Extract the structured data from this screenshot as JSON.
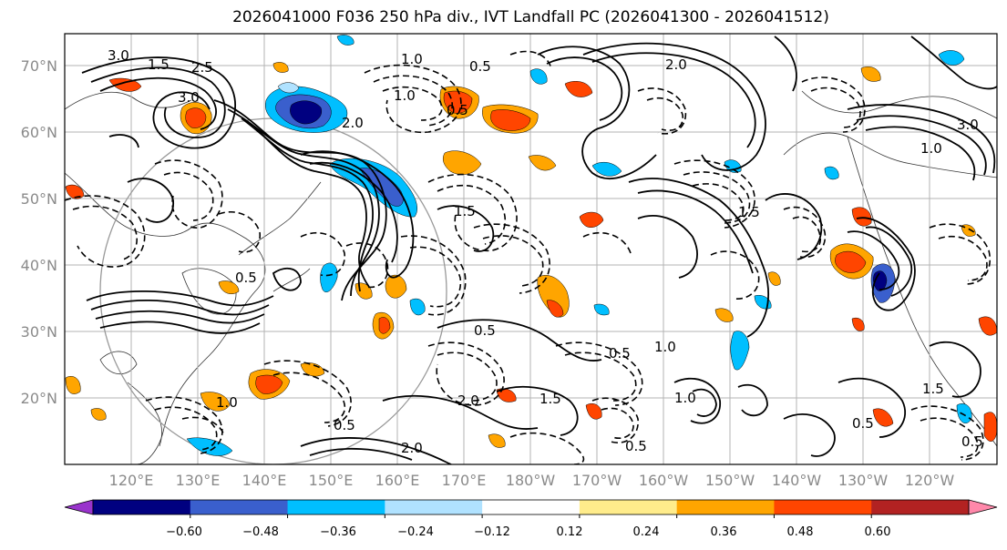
{
  "title": "2026041000 F036 250 hPa div., IVT Landfall PC (2026041300 - 2026041512)",
  "map": {
    "lat_labels": [
      "70°N",
      "60°N",
      "50°N",
      "40°N",
      "30°N",
      "20°N"
    ],
    "lon_labels": [
      "120°E",
      "130°E",
      "140°E",
      "150°E",
      "160°E",
      "170°E",
      "180°W",
      "170°W",
      "160°W",
      "150°W",
      "140°W",
      "130°W",
      "120°W"
    ],
    "contour_labels": [
      "3.0",
      "1.5",
      "2.5",
      "3.0",
      "1.0",
      "0.5",
      "2.0",
      "1.0",
      "0.5",
      "1.5",
      "0.5",
      "2.0",
      "3.0",
      "1.5",
      "1.0",
      "0.5",
      "1.0",
      "0.5",
      "1.5",
      "2.0",
      "1.0",
      "0.5",
      "1.0",
      "0.5",
      "2.0",
      "0.5",
      "1.5",
      "0.5"
    ]
  },
  "colorbar": {
    "ticks": [
      "−0.60",
      "−0.48",
      "−0.36",
      "−0.24",
      "−0.12",
      "0.12",
      "0.24",
      "0.36",
      "0.48",
      "0.60"
    ],
    "colors": [
      "#9933cc",
      "#000080",
      "#3a5fcd",
      "#00bfff",
      "#b0e2ff",
      "#ffffff",
      "#ffec8b",
      "#ffa500",
      "#ff4500",
      "#b22222",
      "#ff88aa"
    ]
  }
}
